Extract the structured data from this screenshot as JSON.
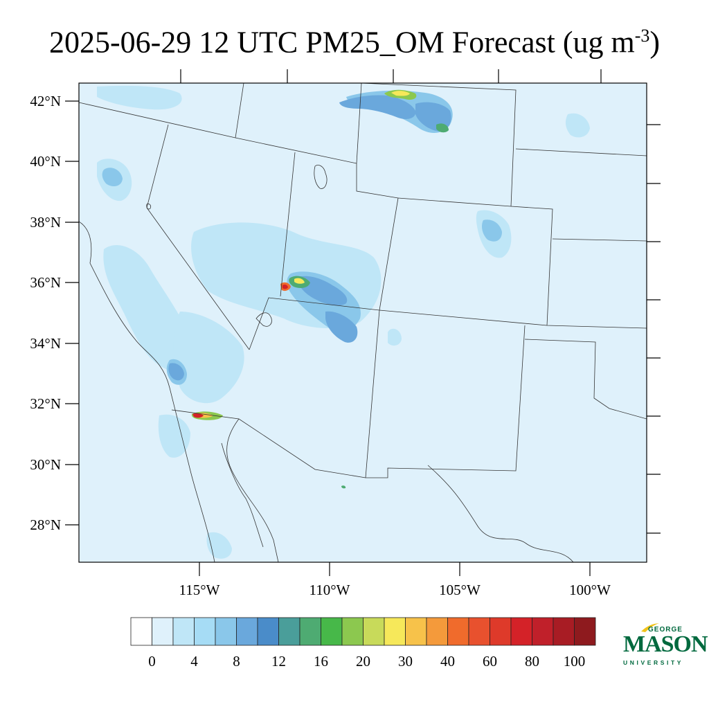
{
  "title": {
    "text": "2025-06-29 12 UTC PM25_OM Forecast (ug m",
    "exponent": "-3",
    "closing": ")"
  },
  "map": {
    "lat_labels": [
      "42°N",
      "40°N",
      "38°N",
      "36°N",
      "34°N",
      "32°N",
      "30°N",
      "28°N"
    ],
    "lon_labels": [
      "115°W",
      "110°W",
      "105°W",
      "100°W"
    ],
    "background_color": "#dff1fb",
    "border_color": "#333333"
  },
  "colorbar": {
    "colors": [
      "#ffffff",
      "#dff1fb",
      "#bfe6f7",
      "#a6dcf5",
      "#8ac7ea",
      "#6aa8dc",
      "#4a8cc9",
      "#4a9e9a",
      "#4eab72",
      "#47b849",
      "#8cc84f",
      "#c8da5a",
      "#f6e85a",
      "#f7c24a",
      "#f49a3b",
      "#f06b2c",
      "#e8512e",
      "#de3a2a",
      "#d42228",
      "#c0202a",
      "#a81c24",
      "#8e1a1e"
    ],
    "labels": [
      "0",
      "4",
      "8",
      "12",
      "16",
      "20",
      "30",
      "40",
      "60",
      "80",
      "100"
    ]
  },
  "logo": {
    "top": "GEORGE",
    "main": "MASON",
    "bottom": "UNIVERSITY",
    "color": "#00693e",
    "accent": "#f2c31b"
  }
}
